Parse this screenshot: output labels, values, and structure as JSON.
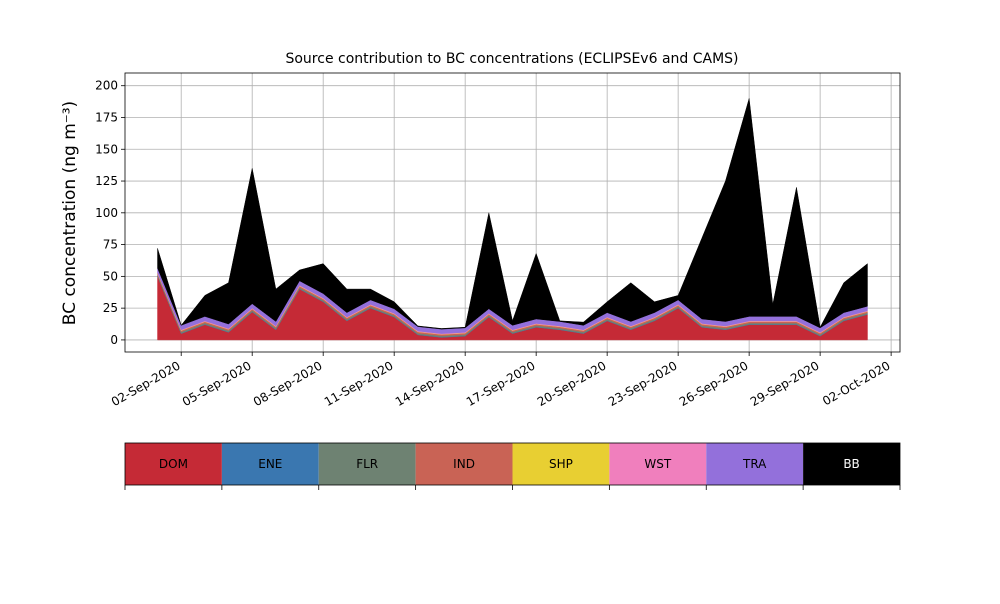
{
  "chart_data": {
    "type": "stacked_area",
    "title": "Source contribution to BC concentrations (ECLIPSEv6 and CAMS)",
    "y_label": "BC concentration (ng m⁻³)",
    "x": [
      "2020-09-01",
      "2020-09-02",
      "2020-09-03",
      "2020-09-04",
      "2020-09-05",
      "2020-09-06",
      "2020-09-07",
      "2020-09-08",
      "2020-09-09",
      "2020-09-10",
      "2020-09-11",
      "2020-09-12",
      "2020-09-13",
      "2020-09-14",
      "2020-09-15",
      "2020-09-16",
      "2020-09-17",
      "2020-09-18",
      "2020-09-19",
      "2020-09-20",
      "2020-09-21",
      "2020-09-22",
      "2020-09-23",
      "2020-09-24",
      "2020-09-25",
      "2020-09-26",
      "2020-09-27",
      "2020-09-28",
      "2020-09-29",
      "2020-09-30",
      "2020-10-01"
    ],
    "series": [
      {
        "name": "DOM",
        "color": "#c52a36",
        "values": [
          50,
          5,
          12,
          6,
          22,
          8,
          40,
          30,
          15,
          25,
          18,
          4,
          2,
          3,
          18,
          5,
          10,
          8,
          5,
          15,
          8,
          15,
          25,
          10,
          8,
          12,
          12,
          12,
          3,
          15,
          20
        ]
      },
      {
        "name": "ENE",
        "color": "#3a77b0",
        "values": [
          0.3,
          0.3,
          0.3,
          0.3,
          0.3,
          0.3,
          0.3,
          0.3,
          0.3,
          0.3,
          0.3,
          0.3,
          0.3,
          0.3,
          0.3,
          0.3,
          0.3,
          0.3,
          0.3,
          0.3,
          0.3,
          0.3,
          0.3,
          0.3,
          0.3,
          0.3,
          0.3,
          0.3,
          0.3,
          0.3,
          0.3
        ]
      },
      {
        "name": "FLR",
        "color": "#6e8272",
        "values": [
          1,
          1,
          1,
          1,
          1,
          1,
          1,
          1,
          1,
          1,
          1,
          1,
          1,
          1,
          1,
          1,
          1,
          1,
          1,
          1,
          1,
          1,
          1,
          1,
          1,
          1,
          1,
          1,
          1,
          1,
          1
        ]
      },
      {
        "name": "IND",
        "color": "#c96355",
        "values": [
          1,
          1,
          1,
          1,
          1,
          1,
          1,
          1,
          1,
          1,
          1,
          1,
          1,
          1,
          1,
          1,
          1,
          1,
          1,
          1,
          1,
          1,
          1,
          1,
          1,
          1,
          1,
          1,
          1,
          1,
          1
        ]
      },
      {
        "name": "SHP",
        "color": "#e8cf32",
        "values": [
          0.2,
          0.2,
          0.2,
          0.2,
          0.2,
          0.2,
          0.2,
          0.2,
          0.2,
          0.2,
          0.2,
          0.2,
          0.2,
          0.2,
          0.2,
          0.2,
          0.2,
          0.2,
          0.2,
          0.2,
          0.2,
          0.2,
          0.2,
          0.2,
          0.2,
          0.2,
          0.2,
          0.2,
          0.2,
          0.2,
          0.2
        ]
      },
      {
        "name": "WST",
        "color": "#f07fbd",
        "values": [
          0.5,
          0.5,
          0.5,
          0.5,
          0.5,
          0.5,
          0.5,
          0.5,
          0.5,
          0.5,
          0.5,
          0.5,
          0.5,
          0.5,
          0.5,
          0.5,
          0.5,
          0.5,
          0.5,
          0.5,
          0.5,
          0.5,
          0.5,
          0.5,
          0.5,
          0.5,
          0.5,
          0.5,
          0.5,
          0.5,
          0.5
        ]
      },
      {
        "name": "TRA",
        "color": "#9370db",
        "values": [
          3.5,
          3.5,
          3.5,
          3.5,
          3.5,
          3.5,
          3.5,
          3.5,
          3.5,
          3.5,
          3.5,
          3.5,
          3.5,
          3.5,
          3.5,
          3.5,
          3.5,
          3.5,
          3.5,
          3.5,
          3.5,
          3.5,
          3.5,
          3.5,
          3.5,
          3.5,
          3.5,
          3.5,
          3.5,
          3.5,
          3.5
        ]
      },
      {
        "name": "BB",
        "color": "#000000",
        "values": [
          15.5,
          0,
          16.5,
          32.5,
          106.5,
          25.5,
          8.5,
          23.5,
          18.5,
          8.5,
          5.5,
          0.5,
          0.5,
          0.5,
          75.5,
          3.5,
          51.5,
          0.5,
          2.5,
          8.5,
          30.5,
          8.5,
          3.5,
          63.5,
          110.5,
          171.5,
          9.5,
          101.5,
          0.5,
          23.5,
          33.5
        ]
      }
    ],
    "xlim": [
      "2020-08-30T15:00",
      "2020-10-02T09:00"
    ],
    "xticks": [
      {
        "value": "2020-09-02",
        "label": "02-Sep-2020"
      },
      {
        "value": "2020-09-05",
        "label": "05-Sep-2020"
      },
      {
        "value": "2020-09-08",
        "label": "08-Sep-2020"
      },
      {
        "value": "2020-09-11",
        "label": "11-Sep-2020"
      },
      {
        "value": "2020-09-14",
        "label": "14-Sep-2020"
      },
      {
        "value": "2020-09-17",
        "label": "17-Sep-2020"
      },
      {
        "value": "2020-09-20",
        "label": "20-Sep-2020"
      },
      {
        "value": "2020-09-23",
        "label": "23-Sep-2020"
      },
      {
        "value": "2020-09-26",
        "label": "26-Sep-2020"
      },
      {
        "value": "2020-09-29",
        "label": "29-Sep-2020"
      },
      {
        "value": "2020-10-02",
        "label": "02-Oct-2020"
      }
    ],
    "ylim": [
      -9.5,
      210
    ],
    "yticks": [
      0,
      25,
      50,
      75,
      100,
      125,
      150,
      175,
      200
    ],
    "grid": true
  }
}
